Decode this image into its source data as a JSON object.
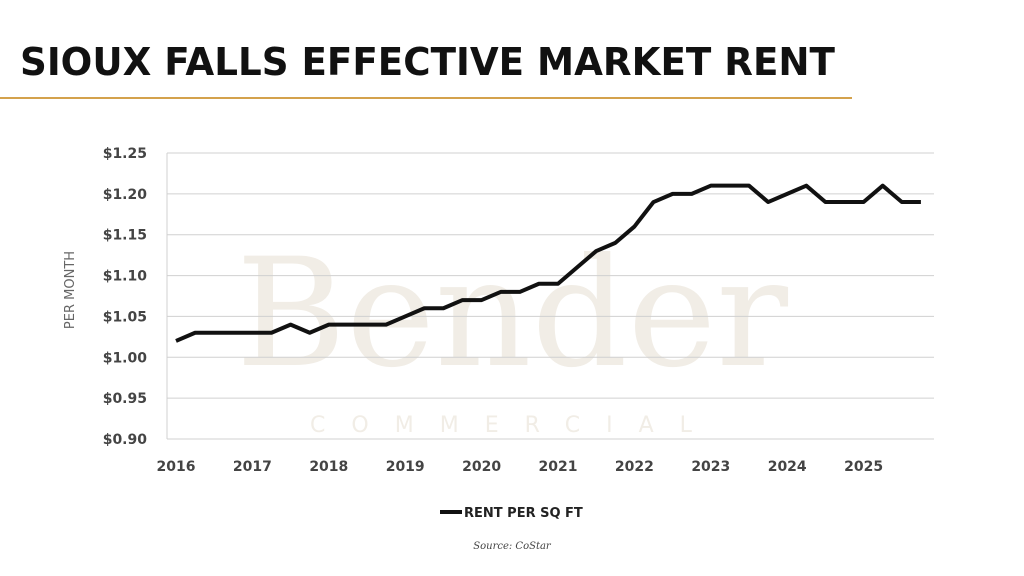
{
  "title": "SIOUX FALLS EFFECTIVE MARKET RENT",
  "source": "Source: CoStar",
  "watermark": {
    "main": "Bender",
    "sub": "COMMERCIAL"
  },
  "colors": {
    "accent": "#d4a24c",
    "line": "#111111",
    "grid": "#d0d0d0",
    "watermark": "#f1ede6"
  },
  "chart_data": {
    "type": "line",
    "title": "SIOUX FALLS EFFECTIVE MARKET RENT",
    "ylabel": "PER MONTH",
    "xlabel": "",
    "ylim": [
      0.9,
      1.25
    ],
    "yticks": [
      "$0.90",
      "$0.95",
      "$1.00",
      "$1.05",
      "$1.10",
      "$1.15",
      "$1.20",
      "$1.25"
    ],
    "ytick_values": [
      0.9,
      0.95,
      1.0,
      1.05,
      1.1,
      1.15,
      1.2,
      1.25
    ],
    "xticks": [
      "2016",
      "2017",
      "2018",
      "2019",
      "2020",
      "2021",
      "2022",
      "2023",
      "2024",
      "2025"
    ],
    "xlim": [
      2016,
      2026
    ],
    "grid": true,
    "legend_position": "bottom",
    "series": [
      {
        "name": "RENT PER SQ FT",
        "x_start": 2016,
        "step": "quarter",
        "values": [
          1.02,
          1.03,
          1.03,
          1.03,
          1.03,
          1.03,
          1.04,
          1.03,
          1.04,
          1.04,
          1.04,
          1.04,
          1.05,
          1.06,
          1.06,
          1.07,
          1.07,
          1.08,
          1.08,
          1.09,
          1.09,
          1.11,
          1.13,
          1.14,
          1.16,
          1.19,
          1.2,
          1.2,
          1.21,
          1.21,
          1.21,
          1.19,
          1.2,
          1.21,
          1.19,
          1.19,
          1.19,
          1.21,
          1.19,
          1.19
        ]
      }
    ]
  }
}
